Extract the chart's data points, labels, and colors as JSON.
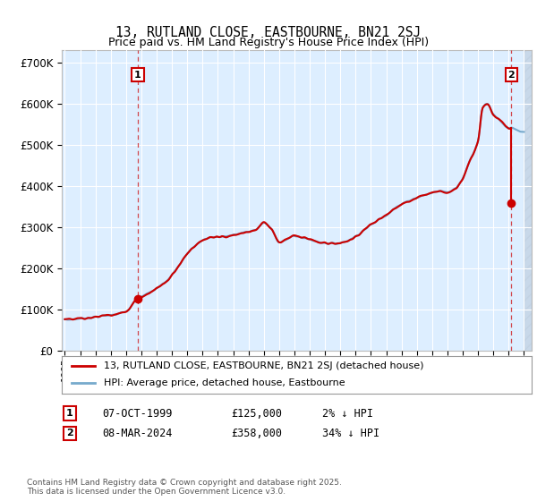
{
  "title": "13, RUTLAND CLOSE, EASTBOURNE, BN21 2SJ",
  "subtitle": "Price paid vs. HM Land Registry's House Price Index (HPI)",
  "ylabel_ticks": [
    "£0",
    "£100K",
    "£200K",
    "£300K",
    "£400K",
    "£500K",
    "£600K",
    "£700K"
  ],
  "ytick_values": [
    0,
    100000,
    200000,
    300000,
    400000,
    500000,
    600000,
    700000
  ],
  "ylim": [
    0,
    730000
  ],
  "xlim_start": 1994.8,
  "xlim_end": 2025.5,
  "xtick_years": [
    1995,
    1996,
    1997,
    1998,
    1999,
    2000,
    2001,
    2002,
    2003,
    2004,
    2005,
    2006,
    2007,
    2008,
    2009,
    2010,
    2011,
    2012,
    2013,
    2014,
    2015,
    2016,
    2017,
    2018,
    2019,
    2020,
    2021,
    2022,
    2023,
    2024,
    2025
  ],
  "transaction1": {
    "label": "1",
    "date": "07-OCT-1999",
    "price": 125000,
    "year": 1999.77,
    "hpi_rel": "2% ↓ HPI"
  },
  "transaction2": {
    "label": "2",
    "date": "08-MAR-2024",
    "price": 358000,
    "year": 2024.18,
    "hpi_rel": "34% ↓ HPI"
  },
  "legend_line1": "13, RUTLAND CLOSE, EASTBOURNE, BN21 2SJ (detached house)",
  "legend_line2": "HPI: Average price, detached house, Eastbourne",
  "footer": "Contains HM Land Registry data © Crown copyright and database right 2025.\nThis data is licensed under the Open Government Licence v3.0.",
  "line_color_red": "#cc0000",
  "line_color_blue": "#77aacc",
  "marker_box_color": "#cc0000",
  "background_color": "#ddeeff",
  "hatch_color": "#c0d0e0",
  "grid_color": "#ffffff",
  "hatch_start": 2025.0,
  "base_price_1995": 75000,
  "peak_price_2022": 600000,
  "t2_hpi_price": 540000
}
